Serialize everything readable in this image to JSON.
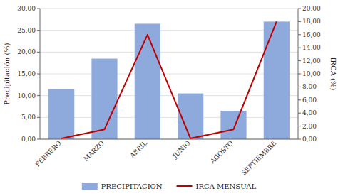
{
  "chart_data": {
    "type": "bar",
    "categories": [
      "FEBRERO",
      "MARZO",
      "ABRIL",
      "JUNIO",
      "AGOSTO",
      "SEPTIEMBRE"
    ],
    "series": [
      {
        "name": "PRECIPITACION",
        "type": "bar",
        "color": "#8EA9DB",
        "values": [
          11.5,
          18.5,
          26.5,
          10.5,
          6.5,
          27.0
        ]
      },
      {
        "name": "IRCA MENSUAL",
        "type": "line",
        "axis": "y2",
        "color": "#C00000",
        "values": [
          0.1,
          1.5,
          16.0,
          0.1,
          1.5,
          18.0
        ]
      }
    ],
    "ylabel": "Precipitación (%)",
    "y2label": "IRCA (%)",
    "ylim": [
      0,
      30
    ],
    "yticks": [
      {
        "value": 0,
        "label": "0,00"
      },
      {
        "value": 5,
        "label": "5,00"
      },
      {
        "value": 10,
        "label": "10,00"
      },
      {
        "value": 15,
        "label": "15,00"
      },
      {
        "value": 20,
        "label": "20,00"
      },
      {
        "value": 25,
        "label": "25,00"
      },
      {
        "value": 30,
        "label": "30,00"
      }
    ],
    "y2lim": [
      0,
      20
    ],
    "y2ticks": [
      {
        "value": 0,
        "label": "0,00"
      },
      {
        "value": 2,
        "label": "2,00"
      },
      {
        "value": 4,
        "label": "4,00"
      },
      {
        "value": 6,
        "label": "6,00"
      },
      {
        "value": 8,
        "label": "8,00"
      },
      {
        "value": 10,
        "label": "10,00"
      },
      {
        "value": 12,
        "label": "12,00"
      },
      {
        "value": 14,
        "label": "14,00"
      },
      {
        "value": 16,
        "label": "16,00"
      },
      {
        "value": 18,
        "label": "18,00"
      },
      {
        "value": 20,
        "label": "20,00"
      }
    ],
    "grid": true,
    "legend": "bottom"
  }
}
